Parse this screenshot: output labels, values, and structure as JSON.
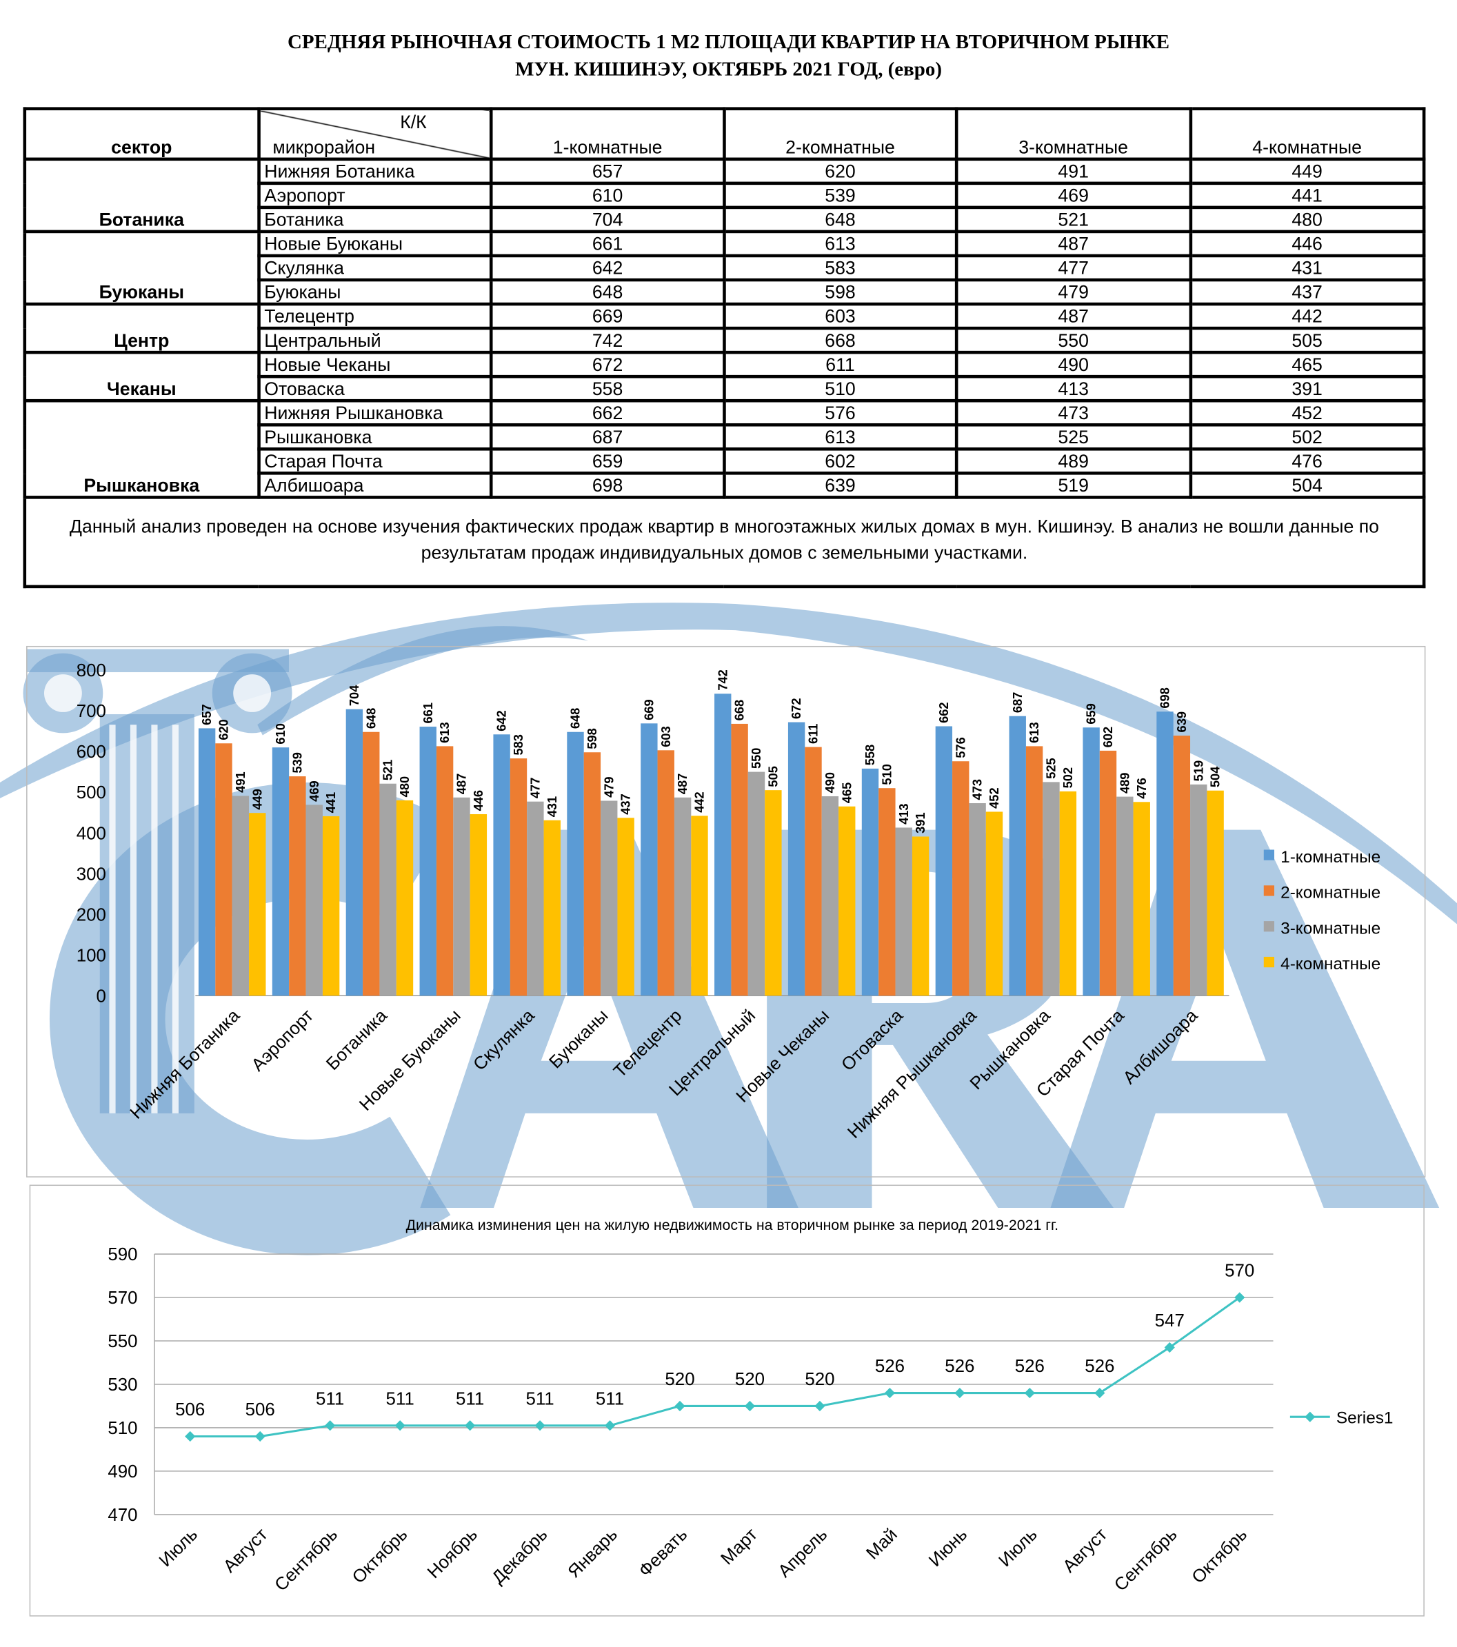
{
  "title_line1": "СРЕДНЯЯ  РЫНОЧНАЯ  СТОИМОСТЬ  1 М2  ПЛОЩАДИ  КВАРТИР НА ВТОРИЧНОМ РЫНКЕ",
  "title_line2": "МУН.  КИШИНЭУ, ОКТЯБРЬ 2021 ГОД, (евро)",
  "logo_text": "CARA",
  "table": {
    "header": {
      "sector": "сектор",
      "kk": "К/К",
      "district": "микрорайон",
      "cols": [
        "1-комнатные",
        "2-комнатные",
        "3-комнатные",
        "4-комнатные"
      ]
    },
    "sectors": [
      {
        "name": "Ботаника",
        "rows": [
          [
            "Нижняя Ботаника",
            657,
            620,
            491,
            449
          ],
          [
            "Аэропорт",
            610,
            539,
            469,
            441
          ],
          [
            "Ботаника",
            704,
            648,
            521,
            480
          ]
        ]
      },
      {
        "name": "Буюканы",
        "rows": [
          [
            "Новые Буюканы",
            661,
            613,
            487,
            446
          ],
          [
            "Скулянка",
            642,
            583,
            477,
            431
          ],
          [
            "Буюканы",
            648,
            598,
            479,
            437
          ]
        ]
      },
      {
        "name": "Центр",
        "rows": [
          [
            "Телецентр",
            669,
            603,
            487,
            442
          ],
          [
            "Центральный",
            742,
            668,
            550,
            505
          ]
        ]
      },
      {
        "name": "Чеканы",
        "rows": [
          [
            "Новые Чеканы",
            672,
            611,
            490,
            465
          ],
          [
            "Отоваска",
            558,
            510,
            413,
            391
          ]
        ]
      },
      {
        "name": "Рышкановка",
        "rows": [
          [
            "Нижняя Рышкановка",
            662,
            576,
            473,
            452
          ],
          [
            "Рышкановка",
            687,
            613,
            525,
            502
          ],
          [
            "Старая Почта",
            659,
            602,
            489,
            476
          ],
          [
            "Албишоара",
            698,
            639,
            519,
            504
          ]
        ]
      }
    ],
    "note": "Данный анализ проведен на основе изучения фактических продаж квартир в многоэтажных жилых домах в мун. Кишинэу. В анализ не вошли данные по результатам  продаж индивидуальных домов с земельными участками."
  },
  "chart_data": [
    {
      "type": "bar",
      "categories": [
        "Нижняя Ботаника",
        "Аэропорт",
        "Ботаника",
        "Новые Буюканы",
        "Скулянка",
        "Буюканы",
        "Телецентр",
        "Центральный",
        "Новые Чеканы",
        "Отоваска",
        "Нижняя Рышкановка",
        "Рышкановка",
        "Старая Почта",
        "Албишоара"
      ],
      "series": [
        {
          "name": "1-комнатные",
          "color": "#5B9BD5",
          "values": [
            657,
            610,
            704,
            661,
            642,
            648,
            669,
            742,
            672,
            558,
            662,
            687,
            659,
            698
          ]
        },
        {
          "name": "2-комнатные",
          "color": "#ED7D31",
          "values": [
            620,
            539,
            648,
            613,
            583,
            598,
            603,
            668,
            611,
            510,
            576,
            613,
            602,
            639
          ]
        },
        {
          "name": "3-комнатные",
          "color": "#A5A5A5",
          "values": [
            491,
            469,
            521,
            487,
            477,
            479,
            487,
            550,
            490,
            413,
            473,
            525,
            489,
            519
          ]
        },
        {
          "name": "4-комнатные",
          "color": "#FFC000",
          "values": [
            449,
            441,
            480,
            446,
            431,
            437,
            442,
            505,
            465,
            391,
            452,
            502,
            476,
            504
          ]
        }
      ],
      "ylim": [
        0,
        800
      ],
      "yticks": [
        0,
        100,
        200,
        300,
        400,
        500,
        600,
        700,
        800
      ],
      "legend": "right",
      "grid": false
    },
    {
      "type": "line",
      "title": "Динамика изминения цен на жилую недвижимость на вторичном рынке за период 2019-2021 гг.",
      "categories": [
        "Июль",
        "Август",
        "Сентябрь",
        "Октябрь",
        "Ноябрь",
        "Декабрь",
        "Январь",
        "Февать",
        "Март",
        "Апрель",
        "Май",
        "Июнь",
        "Июль",
        "Август",
        "Сентябрь",
        "Октябрь"
      ],
      "series": [
        {
          "name": "Series1",
          "color": "#3EC3C3",
          "values": [
            506,
            506,
            511,
            511,
            511,
            511,
            511,
            520,
            520,
            520,
            526,
            526,
            526,
            526,
            547,
            570
          ]
        }
      ],
      "ylim": [
        470,
        590
      ],
      "yticks": [
        470,
        490,
        510,
        530,
        550,
        570,
        590
      ],
      "legend": "right",
      "grid": true
    }
  ]
}
